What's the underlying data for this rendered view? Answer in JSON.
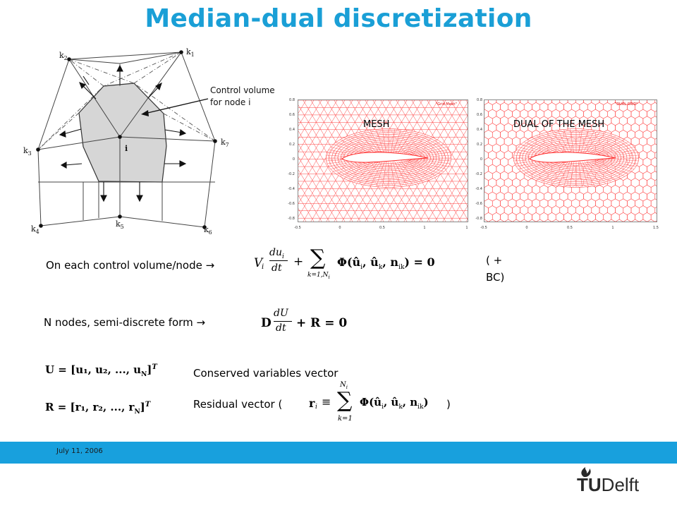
{
  "theme": {
    "accent": "#1a9fd6",
    "footer": "#18a0dd",
    "mesh_red": "#ff2a2a"
  },
  "slide": {
    "title": "Median-dual discretization"
  },
  "figure": {
    "node_labels": {
      "k1": "k",
      "k1s": "1",
      "k2": "k",
      "k2s": "2",
      "k3": "k",
      "k3s": "3",
      "k4": "k",
      "k4s": "4",
      "k5": "k",
      "k5s": "5",
      "k6": "k",
      "k6s": "6",
      "k7": "k",
      "k7s": "7",
      "i": "i"
    },
    "callout_line1": "Control volume",
    "callout_line2": "for node i"
  },
  "plots": {
    "mesh_label": "MESH",
    "dual_label": "DUAL OF THE MESH",
    "mesh_legend": "\"Grid Mesh\"",
    "dual_legend": "\"DUAL GRID\"",
    "left_y_ticks": [
      "0.8",
      "0.6",
      "0.4",
      "0.2",
      "0",
      "-0.2",
      "-0.4",
      "-0.6",
      "-0.8"
    ],
    "left_x_ticks": [
      "-0.5",
      "0",
      "0.5",
      "1",
      "1"
    ],
    "right_y_ticks": [
      "0.8",
      "0.6",
      "0.4",
      "0.2",
      "0",
      "-0.2",
      "-0.4",
      "-0.6",
      "-0.8"
    ],
    "right_x_ticks": [
      "-0.5",
      "0",
      "0.5",
      "1",
      "1.5"
    ]
  },
  "body": {
    "line1_text": "On each control volume/node →",
    "eq1": {
      "Vi": "V",
      "Vi_sub": "i",
      "du": "du",
      "du_sub": "i",
      "dt": "dt",
      "plus": "+",
      "sum": "∑",
      "sum_lower": "k=1,N",
      "sum_lower_sub": "i",
      "phi": "Φ(û",
      "phi_rest": ", û",
      "phi_k": "k",
      "phi_n": ", n",
      "phi_ik": "ik",
      "eq": ") = 0"
    },
    "bc_text1": "( +",
    "bc_text2": "BC)",
    "line2_text": "N nodes, semi-discrete form →",
    "eq2": {
      "D": "D",
      "dU": "dU",
      "dt": "dt",
      "rest": "+ R = 0"
    },
    "U_def": "U = [u₁, u₂, ..., u",
    "U_N": "N",
    "U_end": "]",
    "U_T": "T",
    "R_def": "R = [r₁, r₂, ..., r",
    "R_N": "N",
    "R_end": "]",
    "R_T": "T",
    "conserved_text": "Conserved variables vector",
    "residual_text": "Residual vector  (",
    "residual_close": ")",
    "ri_eq": {
      "ri": "r",
      "ri_sub": "i",
      "equiv": "≡",
      "sum": "∑",
      "top": "N",
      "top_sub": "i",
      "bottom": "k=1",
      "phi": "Φ(û",
      "rest": ", û",
      "k": "k",
      "n": ", n",
      "ik": "ik",
      "close": ")"
    }
  },
  "footer": {
    "date": "July 11, 2006",
    "logo_bold": "TU",
    "logo_rest": "Delft"
  }
}
